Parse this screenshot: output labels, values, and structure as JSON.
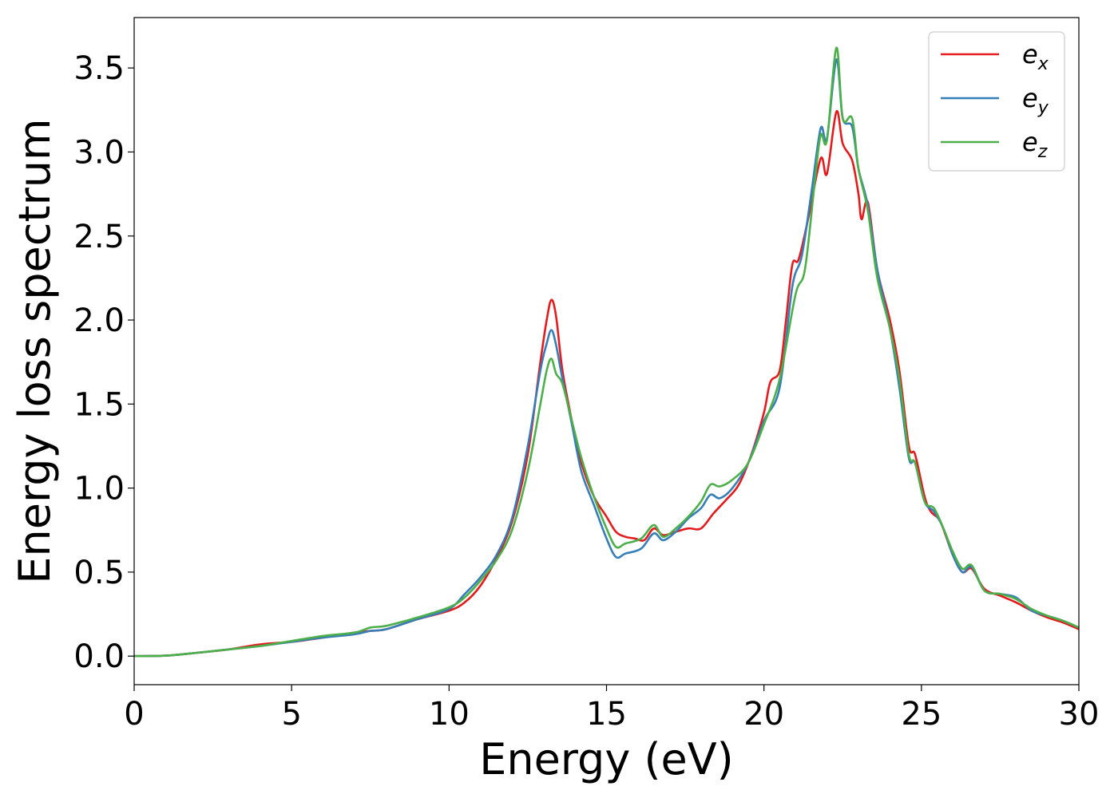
{
  "chart_data": {
    "type": "line",
    "xlabel": "Energy (eV)",
    "ylabel": "Energy loss spectrum",
    "xlim": [
      0,
      30
    ],
    "ylim": [
      -0.17,
      3.8
    ],
    "xticks": [
      0,
      5,
      10,
      15,
      20,
      25,
      30
    ],
    "xtick_labels": [
      "0",
      "5",
      "10",
      "15",
      "20",
      "25",
      "30"
    ],
    "yticks": [
      0.0,
      0.5,
      1.0,
      1.5,
      2.0,
      2.5,
      3.0,
      3.5
    ],
    "ytick_labels": [
      "0.0",
      "0.5",
      "1.0",
      "1.5",
      "2.0",
      "2.5",
      "3.0",
      "3.5"
    ],
    "grid": false,
    "legend_position": "top-right",
    "series": [
      {
        "name": "e",
        "name_sub": "x",
        "color": "#e41a1c",
        "points": [
          [
            0,
            0
          ],
          [
            1,
            0.003
          ],
          [
            2,
            0.02
          ],
          [
            3,
            0.04
          ],
          [
            4,
            0.07
          ],
          [
            5,
            0.085
          ],
          [
            6,
            0.11
          ],
          [
            7,
            0.14
          ],
          [
            7.5,
            0.15
          ],
          [
            8,
            0.16
          ],
          [
            9,
            0.22
          ],
          [
            10,
            0.27
          ],
          [
            10.5,
            0.32
          ],
          [
            11,
            0.42
          ],
          [
            11.5,
            0.58
          ],
          [
            12,
            0.8
          ],
          [
            12.5,
            1.2
          ],
          [
            12.9,
            1.75
          ],
          [
            13.1,
            2.0
          ],
          [
            13.25,
            2.12
          ],
          [
            13.4,
            2.02
          ],
          [
            13.6,
            1.7
          ],
          [
            13.9,
            1.4
          ],
          [
            14.2,
            1.15
          ],
          [
            14.6,
            0.95
          ],
          [
            15,
            0.83
          ],
          [
            15.3,
            0.74
          ],
          [
            15.6,
            0.71
          ],
          [
            15.9,
            0.7
          ],
          [
            16.2,
            0.69
          ],
          [
            16.5,
            0.76
          ],
          [
            16.8,
            0.72
          ],
          [
            17.2,
            0.74
          ],
          [
            17.6,
            0.76
          ],
          [
            18,
            0.76
          ],
          [
            18.4,
            0.85
          ],
          [
            18.8,
            0.93
          ],
          [
            19.2,
            1.02
          ],
          [
            19.6,
            1.2
          ],
          [
            20,
            1.45
          ],
          [
            20.2,
            1.63
          ],
          [
            20.5,
            1.7
          ],
          [
            20.7,
            2.0
          ],
          [
            20.9,
            2.33
          ],
          [
            21.1,
            2.36
          ],
          [
            21.4,
            2.6
          ],
          [
            21.8,
            2.96
          ],
          [
            22.0,
            2.87
          ],
          [
            22.3,
            3.24
          ],
          [
            22.5,
            3.05
          ],
          [
            22.8,
            2.95
          ],
          [
            23.0,
            2.75
          ],
          [
            23.1,
            2.6
          ],
          [
            23.3,
            2.7
          ],
          [
            23.6,
            2.3
          ],
          [
            24,
            2.0
          ],
          [
            24.3,
            1.7
          ],
          [
            24.6,
            1.25
          ],
          [
            24.8,
            1.2
          ],
          [
            25.1,
            0.95
          ],
          [
            25.3,
            0.86
          ],
          [
            25.6,
            0.8
          ],
          [
            26,
            0.6
          ],
          [
            26.3,
            0.5
          ],
          [
            26.6,
            0.52
          ],
          [
            27,
            0.4
          ],
          [
            27.5,
            0.36
          ],
          [
            28,
            0.32
          ],
          [
            28.5,
            0.27
          ],
          [
            29,
            0.23
          ],
          [
            29.5,
            0.2
          ],
          [
            30,
            0.16
          ]
        ]
      },
      {
        "name": "e",
        "name_sub": "y",
        "color": "#377eb8",
        "points": [
          [
            0,
            0
          ],
          [
            1,
            0.003
          ],
          [
            2,
            0.02
          ],
          [
            3,
            0.04
          ],
          [
            4,
            0.06
          ],
          [
            5,
            0.085
          ],
          [
            6,
            0.11
          ],
          [
            7,
            0.13
          ],
          [
            7.5,
            0.15
          ],
          [
            8,
            0.16
          ],
          [
            9,
            0.22
          ],
          [
            10,
            0.28
          ],
          [
            10.5,
            0.37
          ],
          [
            11,
            0.47
          ],
          [
            11.5,
            0.6
          ],
          [
            12,
            0.82
          ],
          [
            12.5,
            1.25
          ],
          [
            12.9,
            1.7
          ],
          [
            13.1,
            1.86
          ],
          [
            13.25,
            1.94
          ],
          [
            13.4,
            1.85
          ],
          [
            13.6,
            1.65
          ],
          [
            13.9,
            1.38
          ],
          [
            14.2,
            1.1
          ],
          [
            14.6,
            0.9
          ],
          [
            15,
            0.7
          ],
          [
            15.3,
            0.59
          ],
          [
            15.6,
            0.61
          ],
          [
            16.1,
            0.64
          ],
          [
            16.5,
            0.73
          ],
          [
            16.8,
            0.69
          ],
          [
            17.2,
            0.74
          ],
          [
            17.6,
            0.82
          ],
          [
            18,
            0.88
          ],
          [
            18.3,
            0.96
          ],
          [
            18.6,
            0.94
          ],
          [
            19,
            1.0
          ],
          [
            19.5,
            1.15
          ],
          [
            20,
            1.4
          ],
          [
            20.5,
            1.6
          ],
          [
            20.9,
            2.2
          ],
          [
            21.2,
            2.38
          ],
          [
            21.5,
            2.75
          ],
          [
            21.8,
            3.14
          ],
          [
            22.0,
            3.08
          ],
          [
            22.3,
            3.55
          ],
          [
            22.5,
            3.2
          ],
          [
            22.8,
            3.15
          ],
          [
            23.0,
            2.9
          ],
          [
            23.3,
            2.68
          ],
          [
            23.6,
            2.3
          ],
          [
            24,
            1.95
          ],
          [
            24.3,
            1.6
          ],
          [
            24.6,
            1.18
          ],
          [
            24.8,
            1.15
          ],
          [
            25.1,
            0.92
          ],
          [
            25.4,
            0.86
          ],
          [
            25.7,
            0.76
          ],
          [
            26,
            0.6
          ],
          [
            26.3,
            0.5
          ],
          [
            26.6,
            0.53
          ],
          [
            27,
            0.39
          ],
          [
            27.5,
            0.37
          ],
          [
            28,
            0.35
          ],
          [
            28.5,
            0.27
          ],
          [
            29,
            0.24
          ],
          [
            29.5,
            0.21
          ],
          [
            30,
            0.17
          ]
        ]
      },
      {
        "name": "e",
        "name_sub": "z",
        "color": "#4daf4a",
        "points": [
          [
            0,
            0
          ],
          [
            1,
            0.003
          ],
          [
            2,
            0.02
          ],
          [
            3,
            0.04
          ],
          [
            4,
            0.06
          ],
          [
            5,
            0.09
          ],
          [
            6,
            0.12
          ],
          [
            7,
            0.14
          ],
          [
            7.5,
            0.17
          ],
          [
            8,
            0.18
          ],
          [
            9,
            0.23
          ],
          [
            10,
            0.29
          ],
          [
            10.5,
            0.35
          ],
          [
            11,
            0.45
          ],
          [
            11.5,
            0.57
          ],
          [
            12,
            0.75
          ],
          [
            12.5,
            1.1
          ],
          [
            12.9,
            1.5
          ],
          [
            13.1,
            1.7
          ],
          [
            13.25,
            1.77
          ],
          [
            13.4,
            1.68
          ],
          [
            13.6,
            1.62
          ],
          [
            13.9,
            1.4
          ],
          [
            14.2,
            1.18
          ],
          [
            14.6,
            0.95
          ],
          [
            15,
            0.76
          ],
          [
            15.3,
            0.65
          ],
          [
            15.6,
            0.67
          ],
          [
            16.1,
            0.7
          ],
          [
            16.5,
            0.78
          ],
          [
            16.8,
            0.71
          ],
          [
            17.2,
            0.76
          ],
          [
            17.6,
            0.83
          ],
          [
            18,
            0.92
          ],
          [
            18.3,
            1.02
          ],
          [
            18.6,
            1.01
          ],
          [
            19,
            1.05
          ],
          [
            19.5,
            1.15
          ],
          [
            20,
            1.38
          ],
          [
            20.5,
            1.65
          ],
          [
            21.0,
            2.15
          ],
          [
            21.3,
            2.3
          ],
          [
            21.6,
            2.8
          ],
          [
            21.8,
            3.1
          ],
          [
            22.0,
            3.07
          ],
          [
            22.3,
            3.62
          ],
          [
            22.5,
            3.2
          ],
          [
            22.8,
            3.2
          ],
          [
            23.0,
            2.9
          ],
          [
            23.3,
            2.65
          ],
          [
            23.6,
            2.25
          ],
          [
            24,
            1.95
          ],
          [
            24.3,
            1.65
          ],
          [
            24.6,
            1.2
          ],
          [
            24.8,
            1.15
          ],
          [
            25.1,
            0.92
          ],
          [
            25.4,
            0.88
          ],
          [
            25.7,
            0.76
          ],
          [
            26,
            0.62
          ],
          [
            26.3,
            0.52
          ],
          [
            26.6,
            0.54
          ],
          [
            27,
            0.39
          ],
          [
            27.5,
            0.37
          ],
          [
            28,
            0.34
          ],
          [
            28.5,
            0.28
          ],
          [
            29,
            0.24
          ],
          [
            29.5,
            0.21
          ],
          [
            30,
            0.17
          ]
        ]
      }
    ]
  }
}
